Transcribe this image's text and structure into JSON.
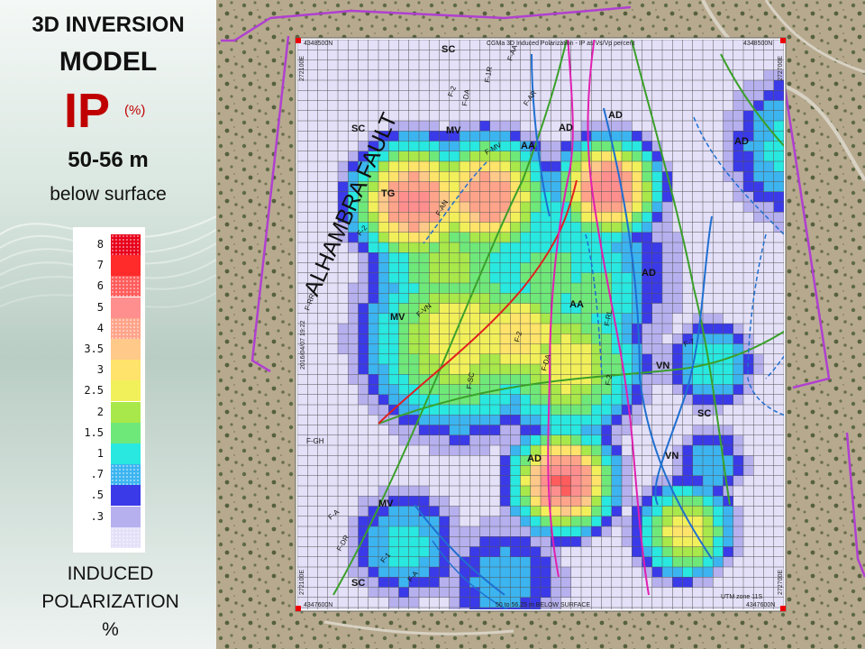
{
  "sidebar": {
    "title_line1": "3D INVERSION",
    "title_line2": "MODEL",
    "param": "IP",
    "param_unit": "(%)",
    "depth": "50-56 m",
    "depth_note": "below surface",
    "bottom_label_1": "INDUCED",
    "bottom_label_2": "POLARIZATION",
    "bottom_label_3": "%"
  },
  "legend": [
    {
      "label": "8",
      "color": "#e8001c",
      "hatched": true
    },
    {
      "label": "7",
      "color": "#ff2a2a",
      "hatched": false
    },
    {
      "label": "6",
      "color": "#ff5d5d",
      "hatched": true
    },
    {
      "label": "5",
      "color": "#ff8f8f",
      "hatched": false
    },
    {
      "label": "4",
      "color": "#ffa48a",
      "hatched": true
    },
    {
      "label": "3.5",
      "color": "#ffc98a",
      "hatched": false
    },
    {
      "label": "3",
      "color": "#ffe36a",
      "hatched": false
    },
    {
      "label": "2.5",
      "color": "#f2f05a",
      "hatched": false
    },
    {
      "label": "2",
      "color": "#a8e84a",
      "hatched": false
    },
    {
      "label": "1.5",
      "color": "#6fe87a",
      "hatched": false
    },
    {
      "label": "1",
      "color": "#28e8e0",
      "hatched": false
    },
    {
      "label": ".7",
      "color": "#3cb4f0",
      "hatched": true
    },
    {
      "label": ".5",
      "color": "#3a3ae8",
      "hatched": false
    },
    {
      "label": ".3",
      "color": "#b6b0ee",
      "hatched": false
    },
    {
      "label": "",
      "color": "#e4e0f8",
      "hatched": true
    }
  ],
  "map": {
    "header": "CGMa 3D Induced Polarization - IP as Vs/Vp percent",
    "corner_tl": "4348500N",
    "corner_tr": "4348500N",
    "corner_bl": "4347600N",
    "corner_br": "4347600N",
    "side_tl": "272100E",
    "side_tr": "272700E",
    "side_bl": "272100E",
    "side_br": "272700E",
    "date_stamp": "2016/04/07 19:22",
    "footer": "50 to 56.25 m BELOW SURFACE",
    "footer_right": "UTM zone 11S",
    "fault_name": "ALHAMBRA FAULT",
    "unit_labels": [
      "SC",
      "SC",
      "MV",
      "AA",
      "AD",
      "AD",
      "AD",
      "TG",
      "MV",
      "AD",
      "AA",
      "VN",
      "SC",
      "VN",
      "AD",
      "MV",
      "SC"
    ],
    "fault_labels": [
      "F-AA",
      "F-1R",
      "F-DA",
      "F-2",
      "F-AR",
      "F-AN",
      "F-MV",
      "F-2",
      "F-VN",
      "F-RR",
      "F-SC",
      "F-2",
      "F-DA",
      "F-RL",
      "F-2",
      "F-7",
      "F-GH",
      "F-A",
      "F-DR",
      "F-1",
      "F-A"
    ]
  }
}
